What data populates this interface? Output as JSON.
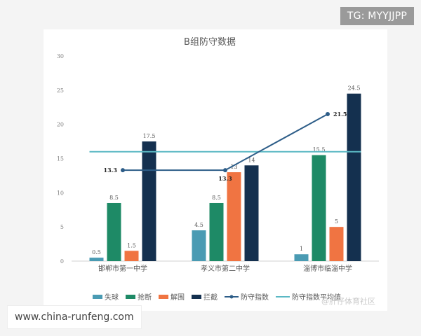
{
  "badges": {
    "tg_label": "TG: MYYJJPP",
    "site_label": "www.china-runfeng.com",
    "watermark": "@肝仔体育社区"
  },
  "chart_data": {
    "type": "bar",
    "title": "B组防守数据",
    "xlabel": "",
    "ylabel": "",
    "ylim": [
      0,
      30
    ],
    "yticks": [
      0,
      5,
      10,
      15,
      20,
      25,
      30
    ],
    "grid": false,
    "legend_position": "bottom",
    "categories": [
      "邯郸市第一中学",
      "孝义市第二中学",
      "淄博市临淄中学"
    ],
    "series": [
      {
        "name": "失球",
        "kind": "bar",
        "color": "#4a9bb3",
        "values": [
          0.5,
          4.5,
          1
        ],
        "labels": [
          "0.5",
          "4.5",
          "1"
        ]
      },
      {
        "name": "抢断",
        "kind": "bar",
        "color": "#1e8a66",
        "values": [
          8.5,
          8.5,
          15.5
        ],
        "labels": [
          "8.5",
          "8.5",
          "15.5"
        ]
      },
      {
        "name": "解围",
        "kind": "bar",
        "color": "#f07442",
        "values": [
          1.5,
          13,
          5
        ],
        "labels": [
          "1.5",
          "13",
          "5"
        ]
      },
      {
        "name": "拦截",
        "kind": "bar",
        "color": "#14304f",
        "values": [
          17.5,
          14,
          24.5
        ],
        "labels": [
          "17.5",
          "14",
          "24.5"
        ]
      },
      {
        "name": "防守指数",
        "kind": "line",
        "color": "#2d5d88",
        "values": [
          13.3,
          13.3,
          21.5
        ],
        "labels": [
          "13.3",
          "13.3",
          "21.5"
        ]
      },
      {
        "name": "防守指数平均值",
        "kind": "hline",
        "color": "#5bb8c4",
        "values": [
          16,
          16,
          16
        ]
      }
    ]
  }
}
